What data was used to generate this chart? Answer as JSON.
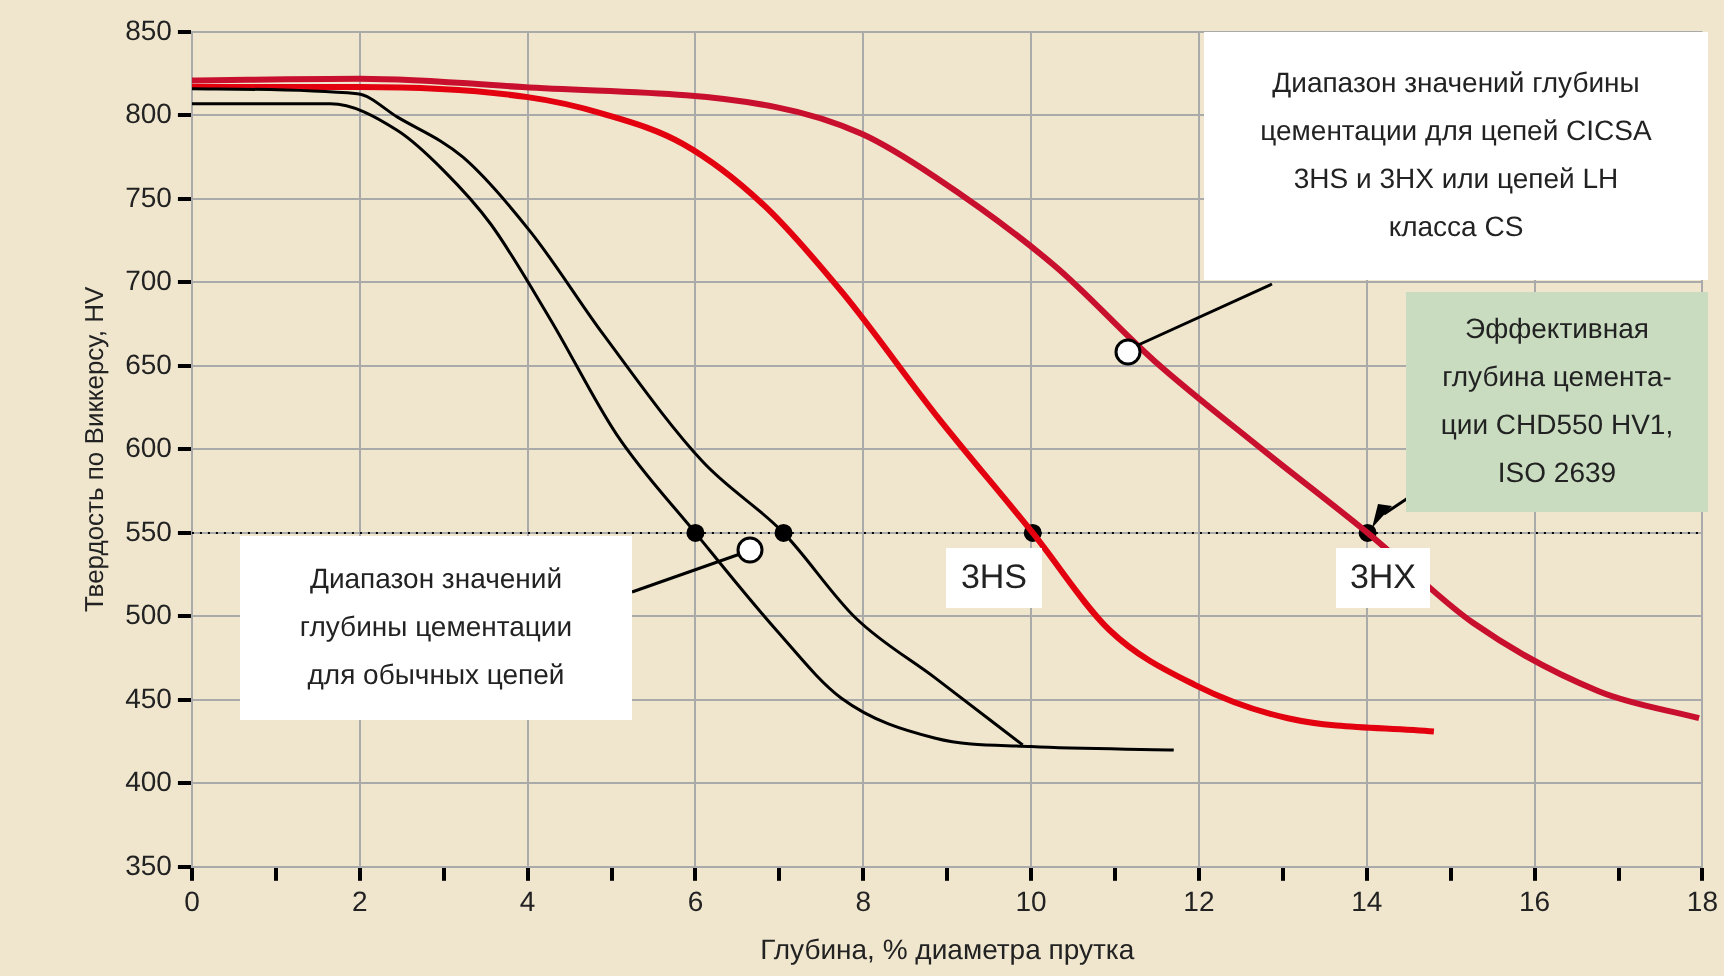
{
  "chart_data": {
    "type": "line",
    "xlabel": "Глубина, % диаметра прутка",
    "ylabel": "Твердость по Виккерсу, HV",
    "xlim": [
      0,
      18
    ],
    "xticks": [
      0,
      {
        "value": 1,
        "label": null
      },
      2,
      {
        "value": 3,
        "label": null
      },
      4,
      {
        "value": 5,
        "label": null
      },
      6,
      {
        "value": 7,
        "label": null
      },
      8,
      {
        "value": 9,
        "label": null
      },
      10,
      {
        "value": 11,
        "label": null
      },
      12,
      {
        "value": 13,
        "label": null
      },
      14,
      {
        "value": 15,
        "label": null
      },
      16,
      {
        "value": 17,
        "label": null
      },
      18
    ],
    "ylim": [
      350,
      850
    ],
    "yticks": [
      350,
      400,
      450,
      500,
      550,
      600,
      650,
      700,
      750,
      800,
      850
    ],
    "grid": true,
    "legend": false,
    "marker": "none",
    "line_style": "solid",
    "series": [
      {
        "color": "#000000",
        "x": [
          0,
          1.65,
          2.45,
          3.0,
          3.56,
          4.27,
          5.06,
          6.0,
          6.96,
          7.74,
          8.86,
          10,
          11.7
        ],
        "values": [
          807,
          807,
          791,
          767,
          735,
          678,
          609,
          550,
          492,
          451,
          427,
          422,
          420
        ]
      },
      {
        "color": "#000000",
        "x": [
          0,
          1.97,
          2.45,
          3.23,
          4.04,
          4.9,
          6.08,
          7.05,
          7.91,
          8.86,
          9.9
        ],
        "values": [
          816,
          813,
          799,
          775,
          730,
          669,
          593,
          550,
          499,
          463,
          423
        ]
      },
      {
        "color": "#e3000f",
        "x": [
          0,
          2,
          4,
          4.9,
          5.85,
          6.8,
          7.75,
          8.86,
          10.02,
          10.93,
          11.95,
          13.06,
          14.8
        ],
        "values": [
          817,
          817,
          811,
          801,
          783,
          747,
          694,
          621,
          550,
          492,
          459,
          439,
          431
        ]
      },
      {
        "color": "#c8102e",
        "x": [
          0,
          2,
          3.94,
          6.96,
          7.98,
          8.86,
          10.28,
          11.47,
          12.73,
          14.01,
          15.27,
          16.77,
          17.96
        ],
        "values": [
          821,
          822,
          817,
          805,
          789,
          763,
          710,
          653,
          601,
          550,
          496,
          455,
          439
        ]
      },
      {
        "type": "scatter",
        "color": "#000000",
        "marker": "circle",
        "x": [
          6,
          7.05,
          10.02,
          14.01
        ],
        "values": [
          550,
          550,
          550,
          550
        ]
      }
    ],
    "ref_lines": [
      {
        "axis": "y",
        "value": 550,
        "color": "#000000",
        "line_style": "dotted"
      }
    ],
    "annotations": [
      "Диапазон значений\nглубины цементации\nдля обычных цепей",
      "Диапазон значений глубины\nцементации для цепей CICSA\n3HS и 3HX или цепей LH\nкласса CS",
      "3HS",
      "3HX",
      "Эффективная\nглубина цемента-\nции CHD550 HV1,\nISO 2639"
    ]
  }
}
